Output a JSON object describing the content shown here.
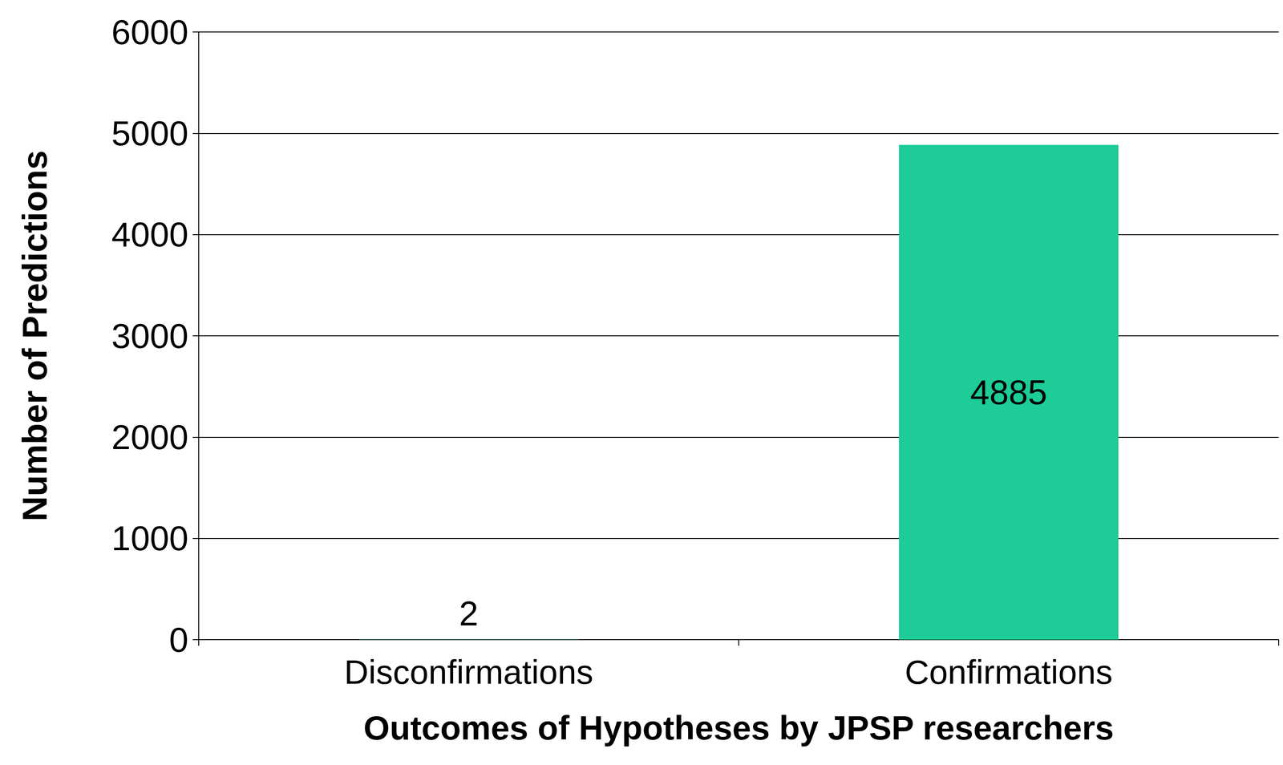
{
  "chart_data": {
    "type": "bar",
    "categories": [
      "Disconfirmations",
      "Confirmations"
    ],
    "values": [
      2,
      4885
    ],
    "color": "#1dcc96",
    "ylim": [
      0,
      6000
    ],
    "yticks": [
      0,
      1000,
      2000,
      3000,
      4000,
      5000,
      6000
    ],
    "grid": true,
    "data_labels": true,
    "x_label": "Outcomes of Hypotheses by JPSP researchers",
    "y_label": "Number of Predictions"
  }
}
